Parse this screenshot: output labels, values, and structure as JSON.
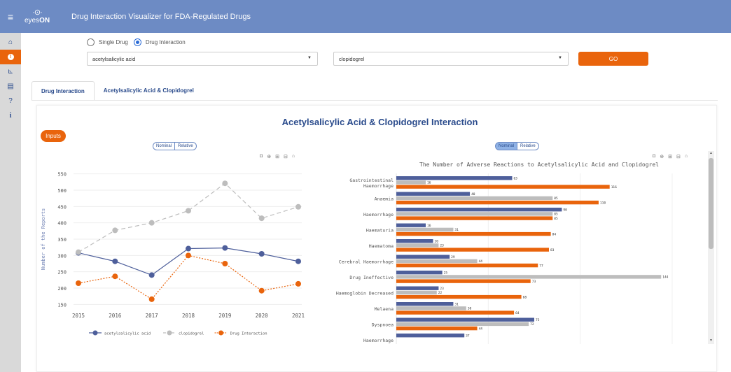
{
  "topbar": {
    "menu_icon": "hamburger-icon",
    "logo_icon": "eye-icon",
    "logo_text_prefix": "eyes",
    "logo_text_suffix": "ON",
    "title": "Drug Interaction Visualizer for FDA-Regulated Drugs"
  },
  "sidebar": {
    "items": [
      {
        "icon": "home-icon",
        "glyph": "⌂",
        "active": false
      },
      {
        "icon": "info-circle-icon",
        "glyph": "●",
        "active": true
      },
      {
        "icon": "chart-icon",
        "glyph": "⊾",
        "active": false
      },
      {
        "icon": "document-icon",
        "glyph": "▤",
        "active": false
      },
      {
        "icon": "question-icon",
        "glyph": "?",
        "active": false
      },
      {
        "icon": "info-icon",
        "glyph": "i",
        "active": false
      }
    ]
  },
  "mode": {
    "options": [
      "Single Drug",
      "Drug Interaction"
    ],
    "selected": "Drug Interaction"
  },
  "drug1": {
    "value": "acetylsalicylic acid"
  },
  "drug2": {
    "value": "clopidogrel"
  },
  "go_label": "GO",
  "tabs": [
    {
      "label": "Drug Interaction",
      "active": true
    },
    {
      "label": "Acetylsalicylic Acid & Clopidogrel",
      "active": false
    }
  ],
  "panel": {
    "title": "Acetylsalicylic Acid & Clopidogrel Interaction",
    "inputs_label": "Inputs",
    "toggle_left": [
      "Nominal",
      "Relative"
    ],
    "toggle_right": [
      "Nominal",
      "Relative"
    ],
    "right_chart_title": "The Number of Adverse Reactions to Acetylsalicylic Acid and Clopidogrel"
  },
  "colors": {
    "blue": "#4e5f9b",
    "grey": "#bdbdbd",
    "orange": "#e9640c",
    "accent": "#e9640c",
    "topbar": "#6d8bc4"
  },
  "chart_data": [
    {
      "type": "line",
      "title": "",
      "xlabel": "",
      "ylabel": "Number of the Reports",
      "x": [
        2015,
        2016,
        2017,
        2018,
        2019,
        2020,
        2021
      ],
      "ylim": [
        140,
        560
      ],
      "yticks": [
        150,
        200,
        250,
        300,
        350,
        400,
        450,
        500,
        550
      ],
      "series": [
        {
          "name": "acetylsalicylic acid",
          "values": [
            308,
            282,
            240,
            321,
            323,
            305,
            282
          ],
          "color": "#4e5f9b",
          "dash": "solid"
        },
        {
          "name": "clopidogrel",
          "values": [
            310,
            377,
            400,
            437,
            521,
            414,
            449
          ],
          "color": "#bdbdbd",
          "dash": "dashed"
        },
        {
          "name": "Drug Interaction",
          "values": [
            215,
            236,
            166,
            300,
            275,
            192,
            213
          ],
          "color": "#e9640c",
          "dash": "dotted"
        }
      ],
      "legend": "bottom"
    },
    {
      "type": "bar",
      "orientation": "horizontal",
      "title": "The Number of Adverse Reactions to Acetylsalicylic Acid and Clopidogrel",
      "categories": [
        "Gastrointestinal Haemorrhage",
        "Anaemia",
        "Haemorrhage",
        "Haematuria",
        "Haematoma",
        "Cerebral Haemorrhage",
        "Drug Ineffective",
        "Haemoglobin Decreased",
        "Melaena",
        "Dyspnoea",
        "Haemorrhage"
      ],
      "series": [
        {
          "values": [
            63,
            40,
            90,
            16,
            20,
            29,
            25,
            23,
            31,
            75,
            37
          ],
          "color": "#4e5f9b"
        },
        {
          "values": [
            16,
            85,
            85,
            31,
            23,
            44,
            144,
            22,
            38,
            72,
            null
          ],
          "color": "#bdbdbd"
        },
        {
          "values": [
            116,
            110,
            85,
            84,
            83,
            77,
            73,
            68,
            64,
            44,
            null
          ],
          "color": "#e9640c"
        }
      ],
      "xlim": [
        0,
        150
      ]
    }
  ]
}
